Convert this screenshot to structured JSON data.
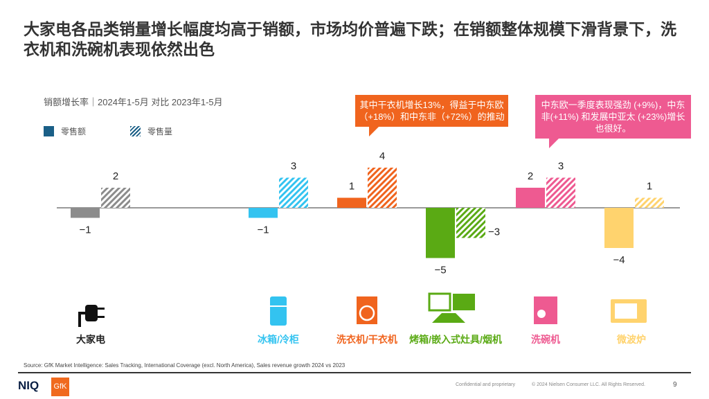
{
  "title": "大家电各品类销量增长幅度均高于销额，市场均价普遍下跌；在销额整体规模下滑背景下，洗衣机和洗碗机表现依然出色",
  "callouts": {
    "orange": "其中干衣机增长13%，得益于中东欧（+18%）和中东非（+72%）的推动",
    "pink": "中东欧一季度表现强劲 (+9%)，中东非(+11%) 和发展中亚太 (+23%)增长也很好。"
  },
  "footer": {
    "source": "Source: GfK Market Intelligence: Sales Tracking, International Coverage (excl. North America), Sales revenue growth 2024 vs 2023",
    "confidential": "Confidential and proprietary",
    "copyright": "© 2024 Nielsen Consumer LLC. All Rights Reserved.",
    "page": "9",
    "logo_niq": "NIQ",
    "logo_gfk": "GfK"
  },
  "chart_data": {
    "type": "bar",
    "subtitle": "销额增长率｜2024年1-5月 对比 2023年1-5月",
    "categories": [
      "大家电",
      "冰箱/冷柜",
      "洗衣机/干衣机",
      "烤箱/嵌入式灶具/烟机",
      "洗碗机",
      "微波炉"
    ],
    "category_colors": [
      "#8c8c8c",
      "#33c3f0",
      "#f0641e",
      "#5aaa14",
      "#ee5a91",
      "#ffd36e"
    ],
    "category_icons": [
      "plug-icon",
      "fridge-icon",
      "washing-machine-icon",
      "oven-hob-hood-icon",
      "dishwasher-icon",
      "microwave-icon"
    ],
    "series": [
      {
        "name": "零售额",
        "style": "solid",
        "values": [
          -1,
          -1,
          1,
          -5,
          2,
          -4
        ]
      },
      {
        "name": "零售量",
        "style": "hatched",
        "values": [
          2,
          3,
          4,
          -3,
          3,
          1
        ]
      }
    ],
    "legend_color": "#1a5f87",
    "grid": false
  }
}
